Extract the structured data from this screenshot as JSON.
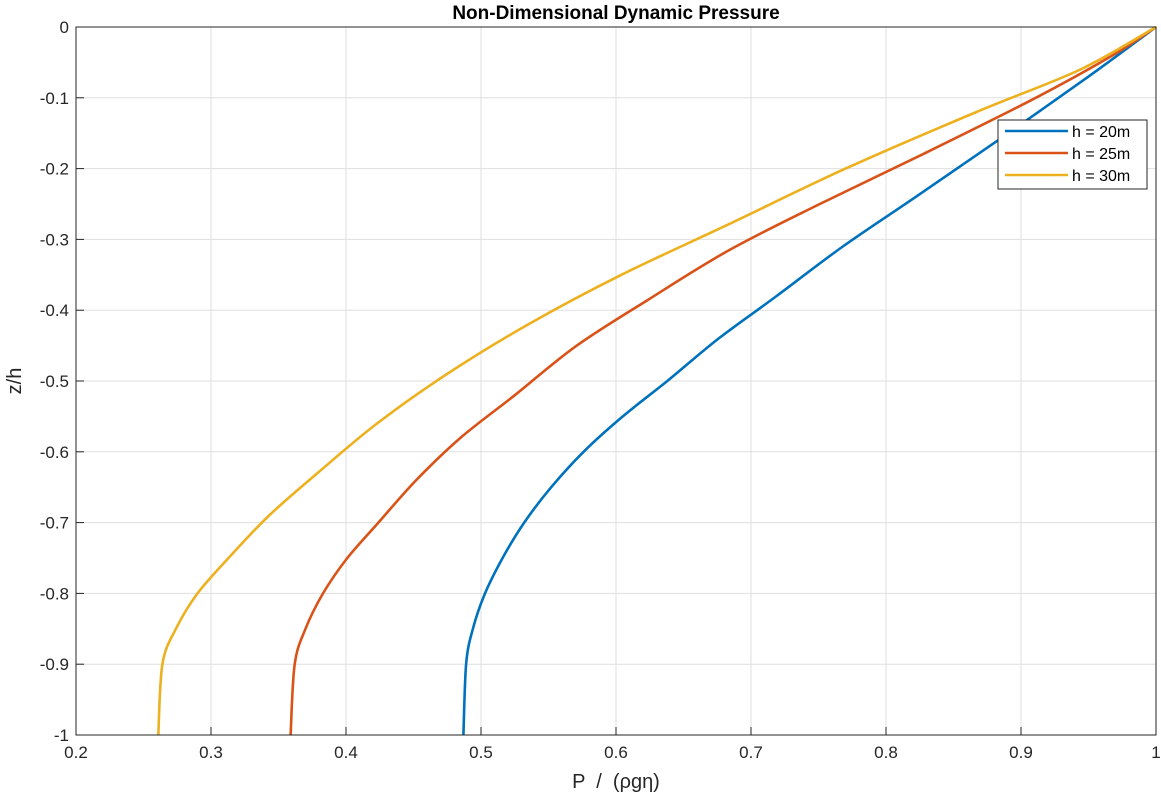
{
  "chart_data": {
    "type": "line",
    "title": "Non-Dimensional Dynamic Pressure",
    "xlabel": "P  /  (ρgη)",
    "ylabel": "z/h",
    "xlim": [
      0.2,
      1
    ],
    "ylim": [
      -1,
      0
    ],
    "xticks": [
      "0.2",
      "0.3",
      "0.4",
      "0.5",
      "0.6",
      "0.7",
      "0.8",
      "0.9",
      "1"
    ],
    "yticks": [
      "0",
      "-0.1",
      "-0.2",
      "-0.3",
      "-0.4",
      "-0.5",
      "-0.6",
      "-0.7",
      "-0.8",
      "-0.9",
      "-1"
    ],
    "grid": true,
    "legend_position": "top-right",
    "series": [
      {
        "name": "h = 20m",
        "color": "#0072BD",
        "x": [
          0.487,
          0.489,
          0.494,
          0.503,
          0.516,
          0.532,
          0.552,
          0.576,
          0.605,
          0.638,
          0.676,
          0.719,
          0.768,
          0.822,
          0.883,
          0.95,
          1.0
        ],
        "y": [
          -1.0,
          -0.9,
          -0.85,
          -0.8,
          -0.75,
          -0.7,
          -0.65,
          -0.6,
          -0.55,
          -0.5,
          -0.44,
          -0.38,
          -0.31,
          -0.24,
          -0.16,
          -0.07,
          0.0
        ]
      },
      {
        "name": "h = 25m",
        "color": "#D95319",
        "x": [
          0.359,
          0.362,
          0.37,
          0.383,
          0.401,
          0.424,
          0.452,
          0.485,
          0.525,
          0.571,
          0.624,
          0.684,
          0.751,
          0.827,
          0.911,
          0.968,
          1.0
        ],
        "y": [
          -1.0,
          -0.9,
          -0.85,
          -0.8,
          -0.75,
          -0.7,
          -0.64,
          -0.58,
          -0.52,
          -0.45,
          -0.385,
          -0.315,
          -0.25,
          -0.18,
          -0.1,
          -0.04,
          0.0
        ]
      },
      {
        "name": "h = 30m",
        "color": "#EDB120",
        "x": [
          0.261,
          0.264,
          0.274,
          0.29,
          0.313,
          0.343,
          0.379,
          0.423,
          0.475,
          0.535,
          0.604,
          0.682,
          0.77,
          0.867,
          0.944,
          1.0
        ],
        "y": [
          -1.0,
          -0.9,
          -0.85,
          -0.8,
          -0.75,
          -0.69,
          -0.63,
          -0.56,
          -0.49,
          -0.42,
          -0.35,
          -0.28,
          -0.2,
          -0.12,
          -0.06,
          0.0
        ]
      }
    ]
  }
}
